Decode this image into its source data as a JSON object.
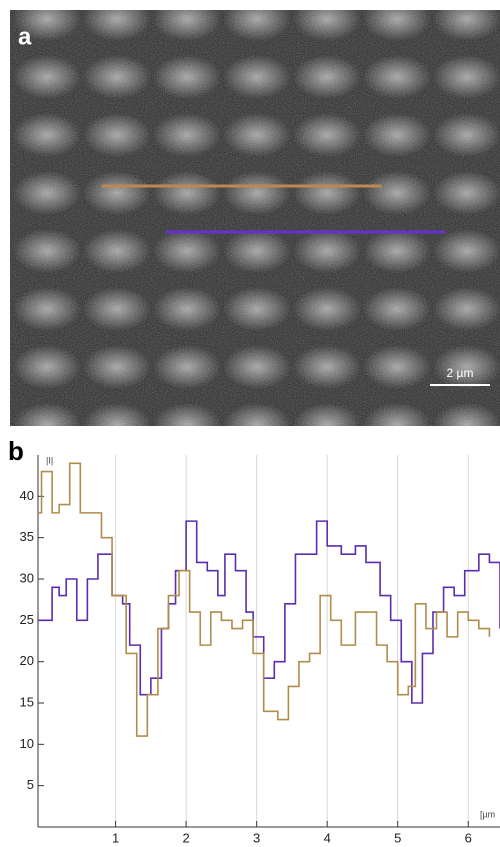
{
  "panel_a": {
    "label": "a",
    "scale_bar": "2 µm"
  },
  "chart_data": {
    "type": "line",
    "label": "b",
    "y_label": "|I|",
    "x_label": "[µm",
    "xlim": [
      -0.1,
      6.45
    ],
    "xticks": [
      1,
      2,
      3,
      4,
      5,
      6
    ],
    "ylim": [
      0,
      45
    ],
    "yticks": [
      5,
      10,
      15,
      20,
      25,
      30,
      35,
      40
    ],
    "grid": "x",
    "series": [
      {
        "color": "#5b2db0",
        "x": [
          -0.1,
          0.1,
          0.2,
          0.3,
          0.45,
          0.6,
          0.75,
          0.95,
          1.1,
          1.2,
          1.35,
          1.5,
          1.65,
          1.75,
          1.85,
          2.0,
          2.15,
          2.3,
          2.45,
          2.55,
          2.7,
          2.85,
          2.95,
          3.1,
          3.25,
          3.4,
          3.55,
          3.7,
          3.85,
          4.0,
          4.2,
          4.4,
          4.55,
          4.75,
          4.9,
          5.05,
          5.2,
          5.35,
          5.5,
          5.65,
          5.8,
          5.95,
          6.15,
          6.3,
          6.45
        ],
        "values": [
          25,
          29,
          28,
          30,
          25,
          30,
          33,
          28,
          27,
          22,
          16,
          18,
          24,
          27,
          31,
          37,
          32,
          31,
          28,
          33,
          31,
          26,
          23,
          18,
          20,
          27,
          33,
          33,
          37,
          34,
          33,
          34,
          32,
          28,
          25,
          20,
          15,
          21,
          26,
          29,
          28,
          31,
          33,
          32,
          24
        ]
      },
      {
        "color": "#b08d4a",
        "x": [
          -0.1,
          -0.05,
          0.1,
          0.2,
          0.35,
          0.5,
          0.65,
          0.8,
          0.95,
          1.15,
          1.3,
          1.45,
          1.6,
          1.75,
          1.9,
          2.05,
          2.2,
          2.35,
          2.5,
          2.65,
          2.8,
          2.95,
          3.1,
          3.3,
          3.45,
          3.6,
          3.75,
          3.9,
          4.05,
          4.2,
          4.4,
          4.55,
          4.7,
          4.85,
          5.0,
          5.15,
          5.25,
          5.4,
          5.55,
          5.7,
          5.85,
          6.0,
          6.15,
          6.3
        ],
        "values": [
          38,
          43,
          38,
          39,
          44,
          38,
          38,
          35,
          28,
          21,
          11,
          16,
          24,
          28,
          31,
          26,
          22,
          26,
          25,
          24,
          25,
          21,
          14,
          13,
          17,
          20,
          21,
          28,
          25,
          22,
          26,
          26,
          22,
          20,
          16,
          17,
          27,
          24,
          26,
          23,
          26,
          25,
          24,
          23
        ]
      }
    ]
  }
}
